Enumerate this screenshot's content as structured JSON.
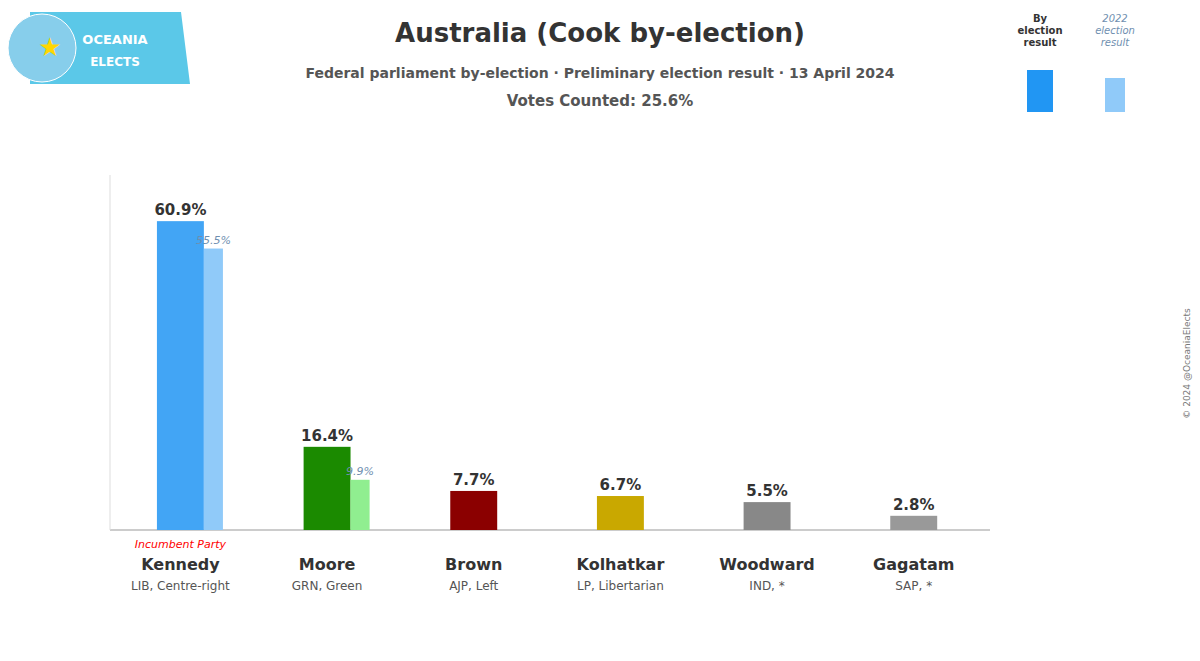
{
  "chart_data": {
    "type": "bar",
    "title": "Australia (Cook by-election)",
    "subtitle": [
      "Federal parliament by-election · Preliminary election result · 13 April 2024",
      "Votes Counted: 25.6%"
    ],
    "categories": [
      "Kennedy",
      "Moore",
      "Brown",
      "Kolhatkar",
      "Woodward",
      "Gagatam"
    ],
    "parties": [
      "LIB, Centre-right",
      "GRN, Green",
      "AJP, Left",
      "LP, Libertarian",
      "IND, *",
      "SAP, *"
    ],
    "series": [
      {
        "name": "By election result",
        "color": "#2196F3",
        "colors": [
          "#42A5F5",
          "#1b8a00",
          "#8B0000",
          "#C9A800",
          "#888888",
          "#999999"
        ],
        "values": [
          60.9,
          16.4,
          7.7,
          6.7,
          5.5,
          2.8
        ],
        "value_labels": [
          "60.9%",
          "16.4%",
          "7.7%",
          "6.7%",
          "5.5%",
          "2.8%"
        ]
      },
      {
        "name": "2022 election result",
        "color": "#90CAF9",
        "colors": [
          "#90CAF9",
          "#90EE90",
          null,
          null,
          null,
          null
        ],
        "values": [
          55.5,
          9.9,
          null,
          null,
          null,
          null
        ],
        "value_labels": [
          "55.5%",
          "9.9%",
          null,
          null,
          null,
          null
        ]
      }
    ],
    "annotations": [
      {
        "text": "Incumbent Party",
        "category": 0,
        "color": "#FF0000"
      },
      {
        "text": "© 2024 @OceaniaElects"
      },
      {
        "text": "OCEANIA"
      },
      {
        "text": "ELECTS"
      },
      {
        "text": "★"
      }
    ],
    "ylim": [
      0,
      70
    ],
    "tick_labels": false,
    "grid": false,
    "legend": "upper right",
    "data_labels": true
  }
}
